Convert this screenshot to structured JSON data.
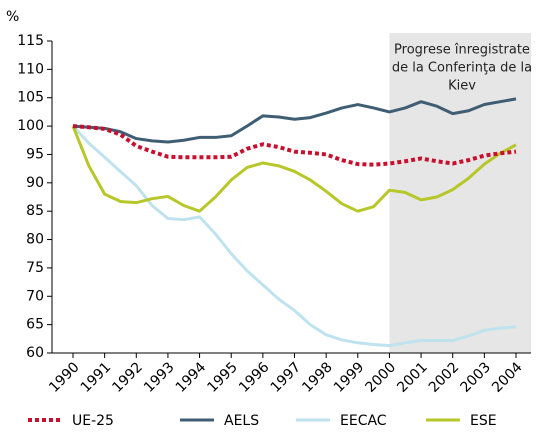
{
  "chart_data": {
    "type": "line",
    "y_label": "%",
    "annotation": [
      "Progrese înregistrate",
      "de la Conferinţa de la",
      "Kiev"
    ],
    "shade_from": 2000,
    "x": [
      1990,
      1990.5,
      1991,
      1991.5,
      1992,
      1992.5,
      1993,
      1993.5,
      1994,
      1994.5,
      1995,
      1995.5,
      1996,
      1996.5,
      1997,
      1997.5,
      1998,
      1998.5,
      1999,
      1999.5,
      2000,
      2000.5,
      2001,
      2001.5,
      2002,
      2002.5,
      2003,
      2003.5,
      2004
    ],
    "series": [
      {
        "name": "UE-25",
        "color": "#c8102e",
        "dashed": true,
        "values": [
          100,
          99.8,
          99.5,
          98.5,
          96.5,
          95.5,
          94.6,
          94.5,
          94.5,
          94.5,
          94.6,
          96,
          96.8,
          96.3,
          95.5,
          95.3,
          95,
          94,
          93.3,
          93.2,
          93.4,
          93.8,
          94.3,
          93.8,
          93.4,
          94,
          94.8,
          95.2,
          95.5
        ]
      },
      {
        "name": "AELS",
        "color": "#3f5e73",
        "dashed": false,
        "values": [
          100,
          99.8,
          99.6,
          99,
          97.8,
          97.4,
          97.2,
          97.5,
          98,
          98,
          98.3,
          100,
          101.8,
          101.6,
          101.2,
          101.5,
          102.3,
          103.2,
          103.8,
          103.2,
          102.5,
          103.2,
          104.3,
          103.5,
          102.2,
          102.7,
          103.8,
          104.3,
          104.8
        ]
      },
      {
        "name": "EECAC",
        "color": "#bfe3ee",
        "dashed": false,
        "values": [
          100,
          97,
          94.5,
          92,
          89.5,
          86,
          83.7,
          83.5,
          84,
          81,
          77.5,
          74.5,
          72,
          69.5,
          67.5,
          65,
          63.2,
          62.3,
          61.8,
          61.5,
          61.3,
          61.8,
          62.2,
          62.2,
          62.2,
          63,
          64,
          64.4,
          64.6
        ]
      },
      {
        "name": "ESE",
        "color": "#b7c72a",
        "dashed": false,
        "values": [
          100,
          93,
          88,
          86.7,
          86.5,
          87.2,
          87.6,
          86,
          85,
          87.5,
          90.5,
          92.7,
          93.5,
          93,
          92,
          90.5,
          88.5,
          86.3,
          85,
          85.8,
          88.7,
          88.3,
          87,
          87.5,
          88.8,
          90.8,
          93.3,
          95.2,
          96.7
        ]
      }
    ],
    "xlim": [
      1990,
      2004
    ],
    "xticks": [
      1990,
      1991,
      1992,
      1993,
      1994,
      1995,
      1996,
      1997,
      1998,
      1999,
      2000,
      2001,
      2002,
      2003,
      2004
    ],
    "ylim": [
      60,
      115
    ],
    "yticks": [
      60,
      65,
      70,
      75,
      80,
      85,
      90,
      95,
      100,
      105,
      110,
      115
    ]
  }
}
